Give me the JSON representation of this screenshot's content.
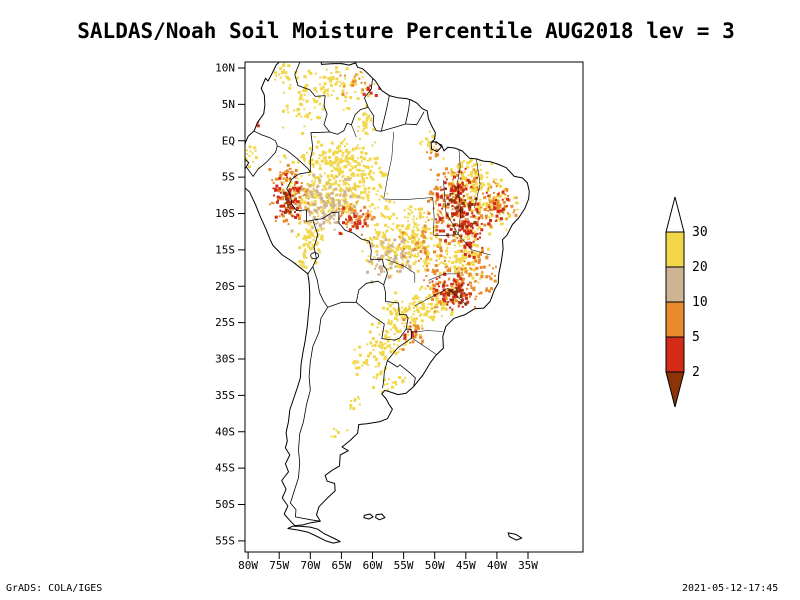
{
  "header": {
    "title": "SALDAS/Noah Soil Moisture Percentile AUG2018 lev = 3"
  },
  "footer": {
    "credit": "GrADS: COLA/IGES",
    "timestamp": "2021-05-12-17:45"
  },
  "chart_data": {
    "type": "heatmap",
    "title": "SALDAS/Noah Soil Moisture Percentile AUG2018 lev = 3",
    "region": "South America",
    "units": "soil moisture percentile",
    "lat_range": [
      -56.5,
      10.8
    ],
    "lon_range": [
      -80.5,
      -26.2
    ],
    "grid": false,
    "lat_ticks": [
      {
        "label": "10N",
        "value": 10
      },
      {
        "label": "5N",
        "value": 5
      },
      {
        "label": "EQ",
        "value": 0
      },
      {
        "label": "5S",
        "value": -5
      },
      {
        "label": "10S",
        "value": -10
      },
      {
        "label": "15S",
        "value": -15
      },
      {
        "label": "20S",
        "value": -20
      },
      {
        "label": "25S",
        "value": -25
      },
      {
        "label": "30S",
        "value": -30
      },
      {
        "label": "35S",
        "value": -35
      },
      {
        "label": "40S",
        "value": -40
      },
      {
        "label": "45S",
        "value": -45
      },
      {
        "label": "50S",
        "value": -50
      },
      {
        "label": "55S",
        "value": -55
      }
    ],
    "lon_ticks": [
      {
        "label": "80W",
        "value": -80
      },
      {
        "label": "75W",
        "value": -75
      },
      {
        "label": "70W",
        "value": -70
      },
      {
        "label": "65W",
        "value": -65
      },
      {
        "label": "60W",
        "value": -60
      },
      {
        "label": "55W",
        "value": -55
      },
      {
        "label": "50W",
        "value": -50
      },
      {
        "label": "45W",
        "value": -45
      },
      {
        "label": "40W",
        "value": -40
      },
      {
        "label": "35W",
        "value": -35
      }
    ],
    "colorbar": {
      "labels": [
        "30",
        "20",
        "10",
        "5",
        "2"
      ],
      "segments": [
        {
          "range": ">30",
          "color": "#ffffff"
        },
        {
          "range": "20-30",
          "color": "#f2d74b"
        },
        {
          "range": "10-20",
          "color": "#cfb493"
        },
        {
          "range": "5-10",
          "color": "#e98a2b"
        },
        {
          "range": "2-5",
          "color": "#d22b18"
        },
        {
          "range": "<2",
          "color": "#8a3408"
        }
      ]
    },
    "level_colors": {
      "y": "#f2d74b",
      "t": "#cfb493",
      "o": "#e98a2b",
      "r": "#d22b18",
      "d": "#8a3408"
    },
    "level_ranges": {
      "y": "20-30",
      "t": "10-20",
      "o": "5-10",
      "r": "2-5",
      "d": "<2"
    },
    "clusters": [
      {
        "lon": -66.0,
        "lat": 7.5,
        "dlon": 9.0,
        "dlat": 4.5,
        "level": "y",
        "n": 90
      },
      {
        "lon": -71.5,
        "lat": 5.0,
        "dlon": 5.0,
        "dlat": 6.0,
        "level": "y",
        "n": 45
      },
      {
        "lon": -74.5,
        "lat": 9.6,
        "dlon": 3.0,
        "dlat": 2.5,
        "level": "y",
        "n": 20
      },
      {
        "lon": -63.5,
        "lat": 8.2,
        "dlon": 4.0,
        "dlat": 2.5,
        "level": "o",
        "n": 14
      },
      {
        "lon": -60.4,
        "lat": 6.8,
        "dlon": 2.5,
        "dlat": 2.5,
        "level": "r",
        "n": 8
      },
      {
        "lon": -61.5,
        "lat": 2.5,
        "dlon": 3.5,
        "dlat": 3.0,
        "level": "y",
        "n": 25
      },
      {
        "lon": -78.6,
        "lat": 3.8,
        "dlon": 1.8,
        "dlat": 2.8,
        "level": "o",
        "n": 10
      },
      {
        "lon": -78.8,
        "lat": 2.8,
        "dlon": 1.4,
        "dlat": 1.8,
        "level": "r",
        "n": 6
      },
      {
        "lon": -65.0,
        "lat": -2.0,
        "dlon": 10.0,
        "dlat": 4.0,
        "level": "y",
        "n": 110
      },
      {
        "lon": -66.0,
        "lat": -6.5,
        "dlon": 13.0,
        "dlat": 7.0,
        "level": "y",
        "n": 330
      },
      {
        "lon": -68.0,
        "lat": -8.5,
        "dlon": 8.0,
        "dlat": 5.5,
        "level": "t",
        "n": 130
      },
      {
        "lon": -73.5,
        "lat": -7.5,
        "dlon": 5.0,
        "dlat": 6.0,
        "level": "o",
        "n": 80
      },
      {
        "lon": -73.8,
        "lat": -7.8,
        "dlon": 4.0,
        "dlat": 5.0,
        "level": "r",
        "n": 55
      },
      {
        "lon": -74.2,
        "lat": -8.2,
        "dlon": 2.5,
        "dlat": 3.0,
        "level": "d",
        "n": 16
      },
      {
        "lon": -63.0,
        "lat": -10.5,
        "dlon": 5.0,
        "dlat": 3.5,
        "level": "o",
        "n": 45
      },
      {
        "lon": -62.8,
        "lat": -10.8,
        "dlon": 4.0,
        "dlat": 3.0,
        "level": "r",
        "n": 28
      },
      {
        "lon": -70.0,
        "lat": -13.0,
        "dlon": 4.0,
        "dlat": 3.0,
        "level": "y",
        "n": 50
      },
      {
        "lon": -55.0,
        "lat": -13.5,
        "dlon": 10.0,
        "dlat": 7.0,
        "level": "y",
        "n": 270
      },
      {
        "lon": -57.5,
        "lat": -16.0,
        "dlon": 6.0,
        "dlat": 4.5,
        "level": "t",
        "n": 70
      },
      {
        "lon": -52.0,
        "lat": -15.0,
        "dlon": 6.0,
        "dlat": 6.0,
        "level": "o",
        "n": 40
      },
      {
        "lon": -44.5,
        "lat": -5.5,
        "dlon": 7.0,
        "dlat": 5.0,
        "level": "y",
        "n": 120
      },
      {
        "lon": -47.0,
        "lat": -8.5,
        "dlon": 7.0,
        "dlat": 8.0,
        "level": "o",
        "n": 150
      },
      {
        "lon": -46.3,
        "lat": -8.8,
        "dlon": 5.5,
        "dlat": 7.0,
        "level": "r",
        "n": 110
      },
      {
        "lon": -46.0,
        "lat": -9.0,
        "dlon": 4.0,
        "dlat": 5.5,
        "level": "d",
        "n": 35
      },
      {
        "lon": -44.5,
        "lat": -12.5,
        "dlon": 3.0,
        "dlat": 5.0,
        "level": "r",
        "n": 45
      },
      {
        "lon": -41.0,
        "lat": -8.5,
        "dlon": 6.0,
        "dlat": 6.0,
        "level": "y",
        "n": 90
      },
      {
        "lon": -40.5,
        "lat": -8.6,
        "dlon": 5.0,
        "dlat": 5.0,
        "level": "o",
        "n": 55
      },
      {
        "lon": -40.0,
        "lat": -9.0,
        "dlon": 4.0,
        "dlat": 4.0,
        "level": "r",
        "n": 28
      },
      {
        "lon": -45.5,
        "lat": -15.5,
        "dlon": 6.0,
        "dlat": 6.0,
        "level": "y",
        "n": 110
      },
      {
        "lon": -43.0,
        "lat": -17.5,
        "dlon": 5.0,
        "dlat": 5.0,
        "level": "o",
        "n": 45
      },
      {
        "lon": -47.5,
        "lat": -20.0,
        "dlon": 6.0,
        "dlat": 5.0,
        "level": "o",
        "n": 85
      },
      {
        "lon": -47.3,
        "lat": -20.5,
        "dlon": 5.0,
        "dlat": 4.0,
        "level": "r",
        "n": 65
      },
      {
        "lon": -47.0,
        "lat": -21.0,
        "dlon": 3.0,
        "dlat": 3.0,
        "level": "d",
        "n": 18
      },
      {
        "lon": -50.5,
        "lat": -22.0,
        "dlon": 6.0,
        "dlat": 4.0,
        "level": "y",
        "n": 85
      },
      {
        "lon": -51.0,
        "lat": 0.3,
        "dlon": 2.5,
        "dlat": 2.5,
        "level": "y",
        "n": 18
      },
      {
        "lon": -50.6,
        "lat": -1.0,
        "dlon": 2.0,
        "dlat": 2.0,
        "level": "o",
        "n": 9
      },
      {
        "lon": -55.0,
        "lat": -24.0,
        "dlon": 6.0,
        "dlat": 4.5,
        "level": "y",
        "n": 90
      },
      {
        "lon": -58.0,
        "lat": -27.5,
        "dlon": 5.0,
        "dlat": 4.0,
        "level": "y",
        "n": 55
      },
      {
        "lon": -61.0,
        "lat": -30.5,
        "dlon": 5.0,
        "dlat": 4.0,
        "level": "y",
        "n": 30
      },
      {
        "lon": -53.8,
        "lat": -26.3,
        "dlon": 3.0,
        "dlat": 3.0,
        "level": "o",
        "n": 22
      },
      {
        "lon": -54.0,
        "lat": -26.5,
        "dlon": 2.0,
        "dlat": 2.0,
        "level": "r",
        "n": 9
      },
      {
        "lon": -62.5,
        "lat": -35.5,
        "dlon": 3.0,
        "dlat": 2.0,
        "level": "y",
        "n": 10
      },
      {
        "lon": -58.5,
        "lat": -33.0,
        "dlon": 3.0,
        "dlat": 2.5,
        "level": "y",
        "n": 12
      },
      {
        "lon": -56.0,
        "lat": -32.8,
        "dlon": 2.5,
        "dlat": 2.0,
        "level": "y",
        "n": 8
      },
      {
        "lon": -79.8,
        "lat": -2.0,
        "dlon": 2.0,
        "dlat": 3.0,
        "level": "y",
        "n": 18
      },
      {
        "lon": -71.0,
        "lat": -16.5,
        "dlon": 3.0,
        "dlat": 2.5,
        "level": "y",
        "n": 20
      },
      {
        "lon": -66.0,
        "lat": -40.5,
        "dlon": 3.0,
        "dlat": 2.0,
        "level": "y",
        "n": 6
      }
    ]
  }
}
